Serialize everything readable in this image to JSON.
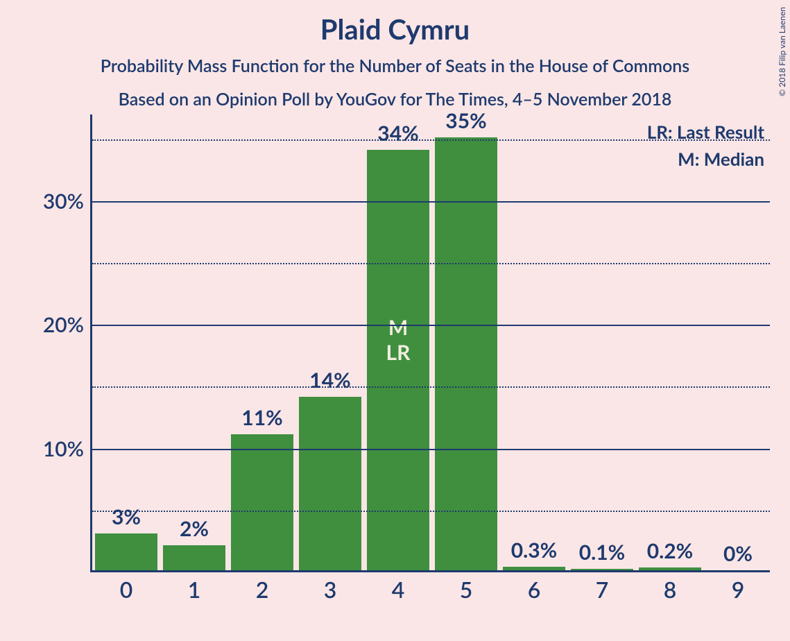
{
  "title": "Plaid Cymru",
  "subtitle1": "Probability Mass Function for the Number of Seats in the House of Commons",
  "subtitle2": "Based on an Opinion Poll by YouGov for The Times, 4–5 November 2018",
  "copyright": "© 2018 Filip van Laenen",
  "legend": {
    "lr": "LR: Last Result",
    "m": "M: Median"
  },
  "chart": {
    "type": "bar",
    "background_color": "#fae6e6",
    "bar_color": "#3f8f3f",
    "axis_color": "#1e3a6e",
    "text_color": "#1e3a6e",
    "bar_inner_text_color": "#f2efe0",
    "title_fontsize": 40,
    "subtitle_fontsize": 25,
    "label_fontsize": 30,
    "xtick_fontsize": 32,
    "legend_fontsize": 26,
    "ymax_percent": 37,
    "ytick_major": [
      10,
      20,
      30
    ],
    "ytick_minor": [
      5,
      15,
      25,
      35
    ],
    "categories": [
      "0",
      "1",
      "2",
      "3",
      "4",
      "5",
      "6",
      "7",
      "8",
      "9"
    ],
    "values": [
      3,
      2,
      11,
      14,
      34,
      35,
      0.3,
      0.1,
      0.2,
      0
    ],
    "value_labels": [
      "3%",
      "2%",
      "11%",
      "14%",
      "34%",
      "35%",
      "0.3%",
      "0.1%",
      "0.2%",
      "0%"
    ],
    "marker_bar_index": 4,
    "marker_lines": [
      "M",
      "LR"
    ],
    "bar_width_ratio": 0.92
  }
}
